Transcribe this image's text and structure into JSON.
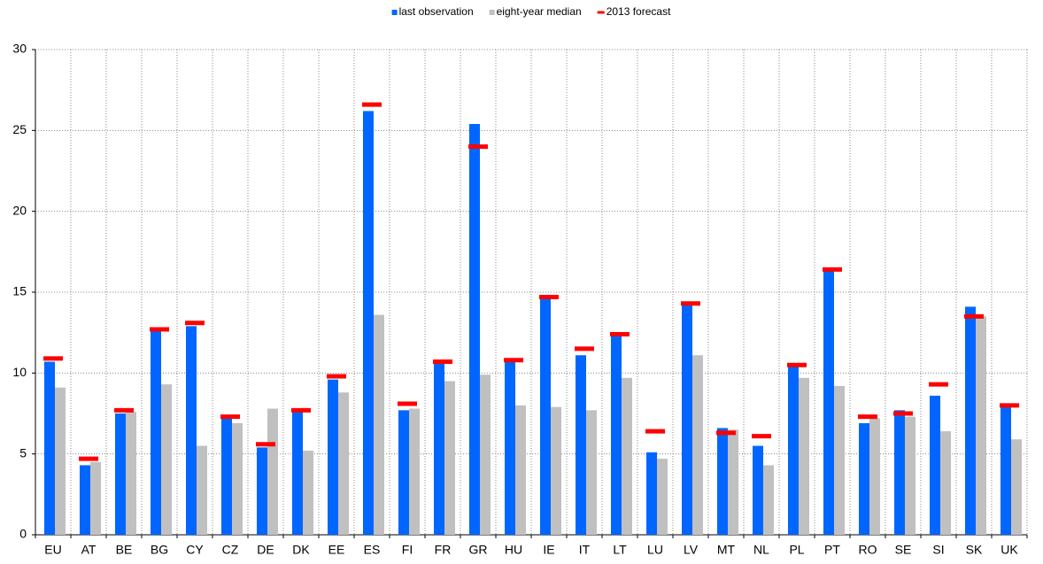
{
  "chart_data": {
    "type": "bar",
    "categories": [
      "EU",
      "AT",
      "BE",
      "BG",
      "CY",
      "CZ",
      "DE",
      "DK",
      "EE",
      "ES",
      "FI",
      "FR",
      "GR",
      "HU",
      "IE",
      "IT",
      "LT",
      "LU",
      "LV",
      "MT",
      "NL",
      "PL",
      "PT",
      "RO",
      "SE",
      "SI",
      "SK",
      "UK"
    ],
    "series": [
      {
        "name": "last observation",
        "color": "#0066ff",
        "mark": "bar",
        "values": [
          10.7,
          4.3,
          7.5,
          12.7,
          12.9,
          7.2,
          5.4,
          7.6,
          9.6,
          26.2,
          7.7,
          10.6,
          25.4,
          10.7,
          14.8,
          11.1,
          12.5,
          5.1,
          14.3,
          6.6,
          5.5,
          10.5,
          16.3,
          6.9,
          7.7,
          8.6,
          14.1,
          7.9
        ]
      },
      {
        "name": "eight-year median",
        "color": "#c0c0c0",
        "mark": "bar",
        "values": [
          9.1,
          4.5,
          7.6,
          9.3,
          5.5,
          6.9,
          7.8,
          5.2,
          8.8,
          13.6,
          7.8,
          9.5,
          9.9,
          8.0,
          7.9,
          7.7,
          9.7,
          4.7,
          11.1,
          6.5,
          4.3,
          9.7,
          9.2,
          7.2,
          7.3,
          6.4,
          13.5,
          5.9
        ]
      },
      {
        "name": "2013 forecast",
        "color": "#ff0000",
        "mark": "dash",
        "values": [
          10.9,
          4.7,
          7.7,
          12.7,
          13.1,
          7.3,
          5.6,
          7.7,
          9.8,
          26.6,
          8.1,
          10.7,
          24.0,
          10.8,
          14.7,
          11.5,
          12.4,
          6.4,
          14.3,
          6.3,
          6.1,
          10.5,
          16.4,
          7.3,
          7.5,
          9.3,
          13.5,
          8.0
        ]
      }
    ],
    "ylim": [
      0,
      30
    ],
    "yticks": [
      0,
      5,
      10,
      15,
      20,
      25,
      30
    ],
    "grid": true,
    "legend": "top"
  }
}
